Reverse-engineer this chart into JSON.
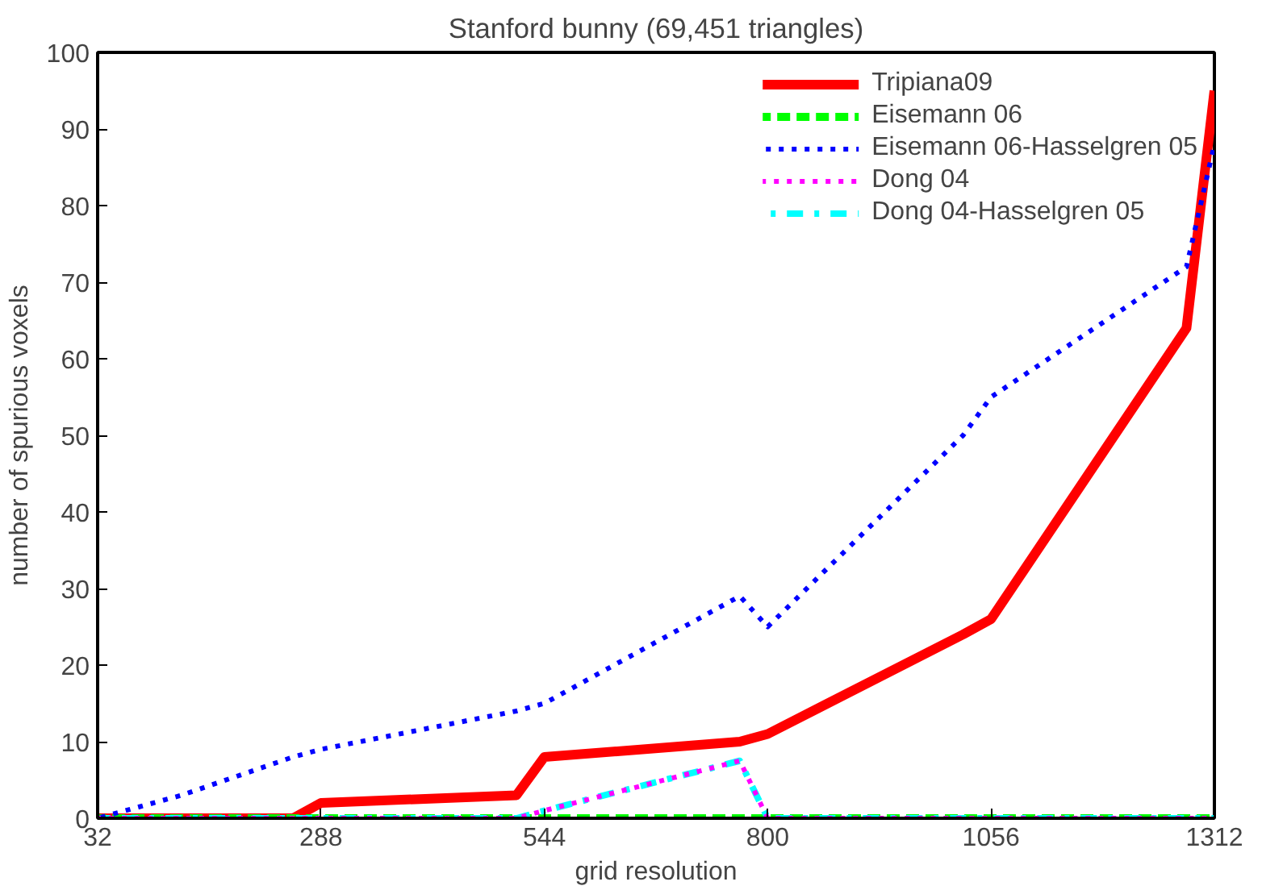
{
  "chart_data": {
    "type": "line",
    "title": "Stanford bunny (69,451 triangles)",
    "xlabel": "grid resolution",
    "ylabel": "number of spurious voxels",
    "x": [
      32,
      64,
      128,
      256,
      288,
      512,
      544,
      768,
      800,
      1024,
      1056,
      1280,
      1312
    ],
    "xlim": [
      32,
      1312
    ],
    "xticks": [
      32,
      288,
      544,
      800,
      1056,
      1312
    ],
    "ylim": [
      0,
      100
    ],
    "yticks": [
      0,
      10,
      20,
      30,
      40,
      50,
      60,
      70,
      80,
      90,
      100
    ],
    "grid": false,
    "legend": "top right",
    "marker": "none",
    "series": [
      {
        "name": "Tripiana09",
        "color": "#ff0000",
        "line_style": "solid",
        "values": [
          0,
          0,
          0,
          0,
          2,
          3,
          8,
          10,
          11,
          24,
          26,
          64,
          95
        ]
      },
      {
        "name": "Eisemann 06",
        "color": "#00ff00",
        "line_style": "dashed",
        "values": [
          0,
          0,
          0,
          0,
          0,
          0,
          0,
          0,
          0,
          0,
          0,
          0,
          0
        ]
      },
      {
        "name": "Eisemann 06-Hasselgren 05",
        "color": "#0000ff",
        "line_style": "dotted",
        "values": [
          0,
          1,
          3,
          8,
          9,
          14,
          15,
          29,
          25,
          50,
          55,
          72,
          88
        ]
      },
      {
        "name": "Dong 04",
        "color": "#ff00ff",
        "line_style": "dotted",
        "values": [
          0,
          0,
          0,
          0,
          0,
          0,
          1,
          7.5,
          0,
          0,
          0,
          0,
          0
        ]
      },
      {
        "name": "Dong 04-Hasselgren 05",
        "color": "#00ffff",
        "line_style": "dashdot",
        "values": [
          0,
          0,
          0,
          0,
          0,
          0,
          1,
          7.5,
          0,
          0,
          0,
          0,
          0
        ]
      }
    ]
  }
}
